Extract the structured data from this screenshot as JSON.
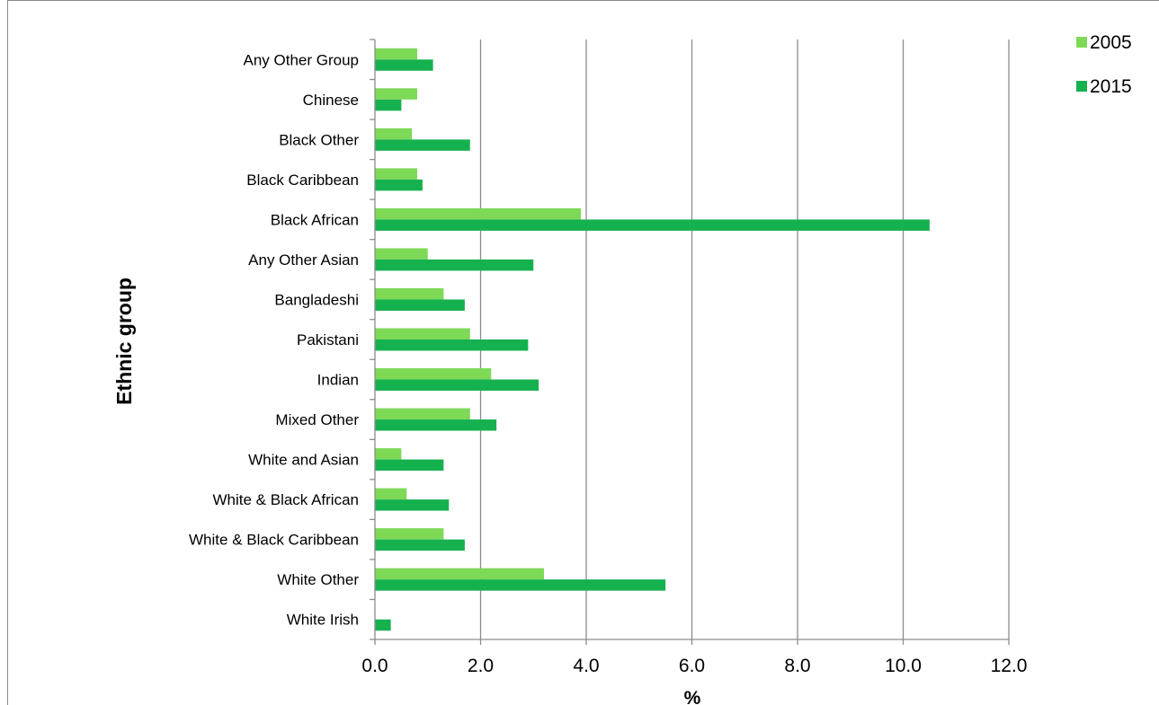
{
  "chart_data": {
    "type": "bar",
    "orientation": "horizontal",
    "categories": [
      "White Irish",
      "White Other",
      "White & Black Caribbean",
      "White & Black African",
      "White and Asian",
      "Mixed Other",
      "Indian",
      "Pakistani",
      "Bangladeshi",
      "Any Other Asian",
      "Black African",
      "Black Caribbean",
      "Black Other",
      "Chinese",
      "Any Other Group"
    ],
    "series": [
      {
        "name": "2005",
        "color": "#7ed957",
        "values": [
          0.0,
          3.2,
          1.3,
          0.6,
          0.5,
          1.8,
          2.2,
          1.8,
          1.3,
          1.0,
          3.9,
          0.8,
          0.7,
          0.8,
          0.8
        ]
      },
      {
        "name": "2015",
        "color": "#16b14f",
        "values": [
          0.3,
          5.5,
          1.7,
          1.4,
          1.3,
          2.3,
          3.1,
          2.9,
          1.7,
          3.0,
          10.5,
          0.9,
          1.8,
          0.5,
          1.1
        ]
      }
    ],
    "xlabel": "%",
    "ylabel": "Ethnic group",
    "xlim": [
      0,
      12
    ],
    "xticks": [
      "0.0",
      "2.0",
      "4.0",
      "6.0",
      "8.0",
      "10.0",
      "12.0"
    ],
    "grid": "vertical",
    "legend": "top-right"
  }
}
